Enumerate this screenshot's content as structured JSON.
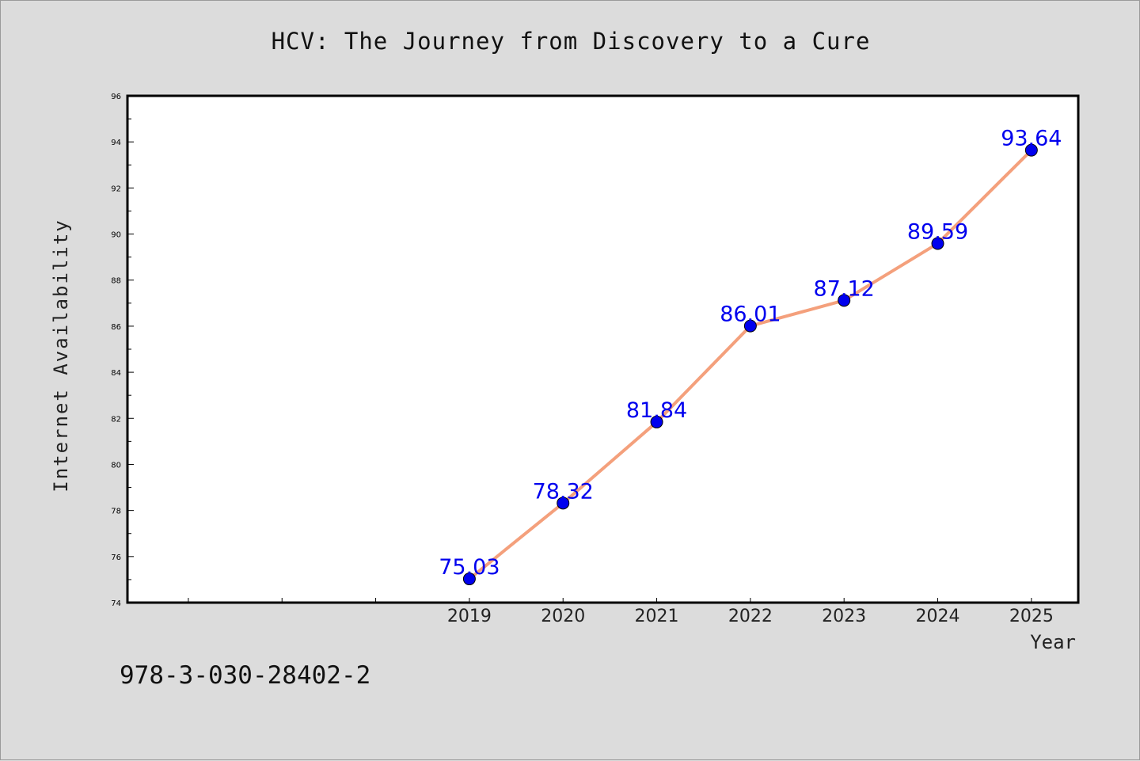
{
  "title": "HCV: The Journey from Discovery to a Cure",
  "footnote": "978-3-030-28402-2",
  "colors": {
    "background": "#dcdcdc",
    "plot_background": "#ffffff",
    "line": "#f4a07c",
    "marker": "#0000ee",
    "data_label": "#0000ee"
  },
  "chart_data": {
    "type": "line",
    "xlabel": "Year",
    "ylabel": "Internet Availability",
    "x": [
      2019,
      2020,
      2021,
      2022,
      2023,
      2024,
      2025
    ],
    "series": [
      {
        "values": [
          75.03,
          78.32,
          81.84,
          86.01,
          87.12,
          89.59,
          93.64
        ]
      }
    ],
    "data_labels": [
      "75.03",
      "78.32",
      "81.84",
      "86.01",
      "87.12",
      "89.59",
      "93.64"
    ],
    "xlim": [
      2015.35,
      2025.5
    ],
    "ylim": [
      74,
      96
    ],
    "yticks": [
      74,
      76,
      78,
      80,
      82,
      84,
      86,
      88,
      90,
      92,
      94,
      96
    ],
    "xticks": [
      2019,
      2020,
      2021,
      2022,
      2023,
      2024,
      2025
    ],
    "grid": false,
    "legend": "none"
  }
}
